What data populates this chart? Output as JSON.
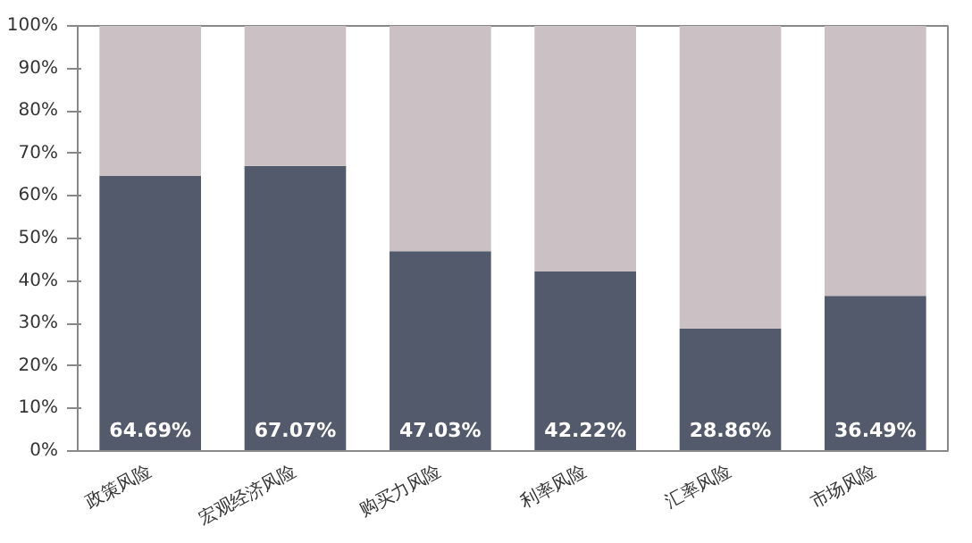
{
  "chart_data": {
    "type": "bar",
    "stacked": true,
    "categories": [
      "政策风险",
      "宏观经济风险",
      "购买力风险",
      "利率风险",
      "汇率风险",
      "市场风险"
    ],
    "series": [
      {
        "color": "#525a6b",
        "values": [
          64.69,
          67.07,
          47.03,
          42.22,
          28.86,
          36.49
        ],
        "value_labels": [
          "64.69%",
          "67.07%",
          "47.03%",
          "42.22%",
          "28.86%",
          "36.49%"
        ]
      },
      {
        "color": "#cbc0c4",
        "values": [
          35.31,
          32.93,
          52.97,
          57.78,
          71.14,
          63.51
        ]
      }
    ],
    "ylim": [
      0,
      100
    ],
    "yticks": [
      {
        "value": 0,
        "label": "0%"
      },
      {
        "value": 10,
        "label": "10%"
      },
      {
        "value": 20,
        "label": "20%"
      },
      {
        "value": 30,
        "label": "30%"
      },
      {
        "value": 40,
        "label": "40%"
      },
      {
        "value": 50,
        "label": "50%"
      },
      {
        "value": 60,
        "label": "60%"
      },
      {
        "value": 70,
        "label": "70%"
      },
      {
        "value": 80,
        "label": "80%"
      },
      {
        "value": 90,
        "label": "90%"
      },
      {
        "value": 100,
        "label": "100%"
      }
    ],
    "grid": false
  }
}
